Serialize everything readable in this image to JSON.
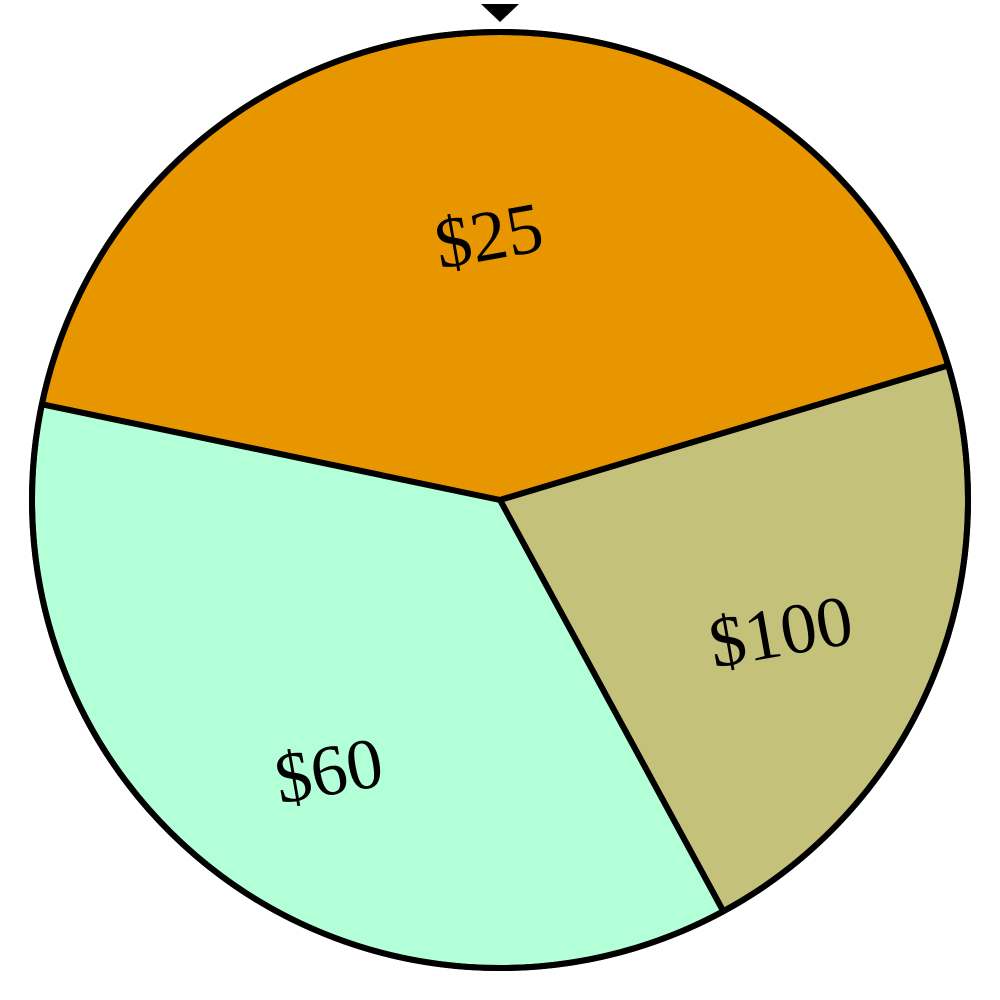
{
  "wheel": {
    "pointer_icon": "pointer-triangle-icon",
    "sectors": [
      {
        "label": "$25",
        "color": "#E89600"
      },
      {
        "label": "$100",
        "color": "#C3C17A"
      },
      {
        "label": "$60",
        "color": "#B2FFD8"
      }
    ]
  }
}
